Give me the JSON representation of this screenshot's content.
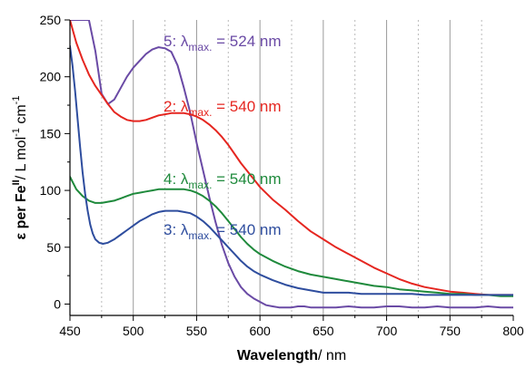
{
  "chart_data": {
    "type": "line",
    "title": "",
    "subtitle": "",
    "x_label": {
      "bold": "Wavelength",
      "normal": "/ nm"
    },
    "y_label": {
      "bold_prefix": "ε per Fe",
      "sup_bold": "II",
      "rest_1": "/ L mol",
      "sup_1": "-1",
      "rest_2": " cm",
      "sup_2": "-1"
    },
    "x_axis": {
      "min": 450,
      "max": 800,
      "major_ticks": [
        450,
        500,
        550,
        600,
        650,
        700,
        750,
        800
      ],
      "major_tick_labels": [
        "450",
        "500",
        "550",
        "600",
        "650",
        "700",
        "750",
        "800"
      ],
      "minor_ticks": [
        475,
        525,
        575,
        625,
        675,
        725,
        775
      ]
    },
    "y_axis": {
      "min": -10,
      "max": 250,
      "major_ticks": [
        0,
        50,
        100,
        150,
        200,
        250
      ],
      "major_tick_labels": [
        "0",
        "50",
        "100",
        "150",
        "200",
        "250"
      ],
      "minor_ticks": [
        25,
        75,
        125,
        175,
        225
      ]
    },
    "grid": {
      "major_x": true,
      "minor_x": true,
      "major_y": false
    },
    "series": [
      {
        "id": "5",
        "color": "#6a4aa5",
        "x": [
          450,
          455,
          460,
          465,
          470,
          475,
          480,
          485,
          490,
          495,
          500,
          505,
          510,
          515,
          520,
          525,
          530,
          535,
          540,
          545,
          550,
          555,
          560,
          565,
          570,
          575,
          580,
          585,
          590,
          595,
          600,
          605,
          610,
          615,
          620,
          625,
          630,
          635,
          640,
          645,
          650,
          660,
          670,
          680,
          690,
          700,
          710,
          720,
          730,
          740,
          750,
          760,
          770,
          780,
          790,
          800
        ],
        "y": [
          250,
          250,
          250,
          250,
          223,
          185,
          176,
          180,
          190,
          200,
          208,
          214,
          220,
          224,
          226,
          225,
          222,
          210,
          190,
          168,
          142,
          118,
          94,
          72,
          52,
          36,
          24,
          15,
          9,
          5,
          2,
          -1,
          -2,
          -3,
          -3,
          -3,
          -2,
          -2,
          -3,
          -3,
          -3,
          -3,
          -2,
          -3,
          -3,
          -2,
          -2,
          -3,
          -3,
          -2,
          -3,
          -3,
          -3,
          -2,
          -3,
          -3
        ]
      },
      {
        "id": "2",
        "color": "#e52620",
        "x": [
          450,
          455,
          460,
          465,
          470,
          475,
          480,
          485,
          490,
          495,
          500,
          505,
          510,
          515,
          520,
          525,
          530,
          535,
          540,
          545,
          550,
          555,
          560,
          565,
          570,
          575,
          580,
          585,
          590,
          595,
          600,
          610,
          620,
          630,
          640,
          650,
          660,
          670,
          680,
          690,
          700,
          710,
          720,
          730,
          740,
          750,
          760,
          770,
          780,
          790,
          800
        ],
        "y": [
          250,
          230,
          215,
          202,
          192,
          184,
          176,
          169,
          165,
          162,
          161,
          161,
          162,
          164,
          166,
          167,
          168,
          168,
          168,
          167,
          165,
          162,
          158,
          153,
          147,
          140,
          132,
          124,
          117,
          110,
          103,
          92,
          83,
          73,
          64,
          57,
          50,
          44,
          38,
          32,
          27,
          22,
          18,
          15,
          13,
          11,
          10,
          9,
          8,
          8,
          8
        ]
      },
      {
        "id": "4",
        "color": "#1f8a3c",
        "x": [
          450,
          455,
          460,
          465,
          470,
          475,
          480,
          485,
          490,
          495,
          500,
          505,
          510,
          515,
          520,
          525,
          530,
          535,
          540,
          545,
          550,
          555,
          560,
          565,
          570,
          575,
          580,
          585,
          590,
          595,
          600,
          610,
          620,
          630,
          640,
          650,
          660,
          670,
          680,
          690,
          700,
          710,
          720,
          730,
          740,
          750,
          760,
          770,
          780,
          790,
          800
        ],
        "y": [
          112,
          101,
          95,
          91,
          89,
          89,
          90,
          91,
          93,
          95,
          97,
          98,
          99,
          100,
          101,
          101,
          101,
          101,
          101,
          100,
          98,
          95,
          91,
          86,
          80,
          73,
          66,
          59,
          53,
          48,
          44,
          38,
          33,
          29,
          26,
          24,
          22,
          20,
          18,
          16,
          15,
          13,
          12,
          11,
          10,
          9,
          9,
          8,
          8,
          7,
          7
        ]
      },
      {
        "id": "3",
        "color": "#2e4d9e",
        "x": [
          450,
          452,
          454,
          456,
          458,
          460,
          462,
          464,
          466,
          468,
          470,
          473,
          476,
          480,
          485,
          490,
          495,
          500,
          505,
          510,
          515,
          520,
          525,
          530,
          535,
          540,
          545,
          550,
          555,
          560,
          565,
          570,
          575,
          580,
          585,
          590,
          595,
          600,
          610,
          620,
          630,
          640,
          650,
          660,
          670,
          680,
          690,
          700,
          710,
          720,
          730,
          740,
          750,
          760,
          770,
          780,
          790,
          800
        ],
        "y": [
          227,
          210,
          188,
          163,
          138,
          116,
          97,
          82,
          70,
          62,
          57,
          54,
          53,
          54,
          57,
          61,
          65,
          69,
          73,
          76,
          79,
          81,
          82,
          82,
          82,
          81,
          80,
          77,
          73,
          68,
          62,
          56,
          50,
          44,
          38,
          33,
          29,
          26,
          21,
          17,
          14,
          12,
          10,
          10,
          10,
          9,
          9,
          9,
          9,
          9,
          8,
          8,
          8,
          8,
          8,
          8,
          8,
          8
        ]
      }
    ],
    "annotations": [
      {
        "series": "5",
        "prefix": "5: λ",
        "sub": "max.",
        "suffix": " = 524 nm",
        "color": "#6a4aa5"
      },
      {
        "series": "2",
        "prefix": "2: λ",
        "sub": "max.",
        "suffix": " = 540 nm",
        "color": "#e52620"
      },
      {
        "series": "4",
        "prefix": "4: λ",
        "sub": "max.",
        "suffix": " = 540 nm",
        "color": "#1f8a3c"
      },
      {
        "series": "3",
        "prefix": "3: λ",
        "sub": "max.",
        "suffix": " = 540 nm",
        "color": "#2e4d9e"
      }
    ]
  }
}
